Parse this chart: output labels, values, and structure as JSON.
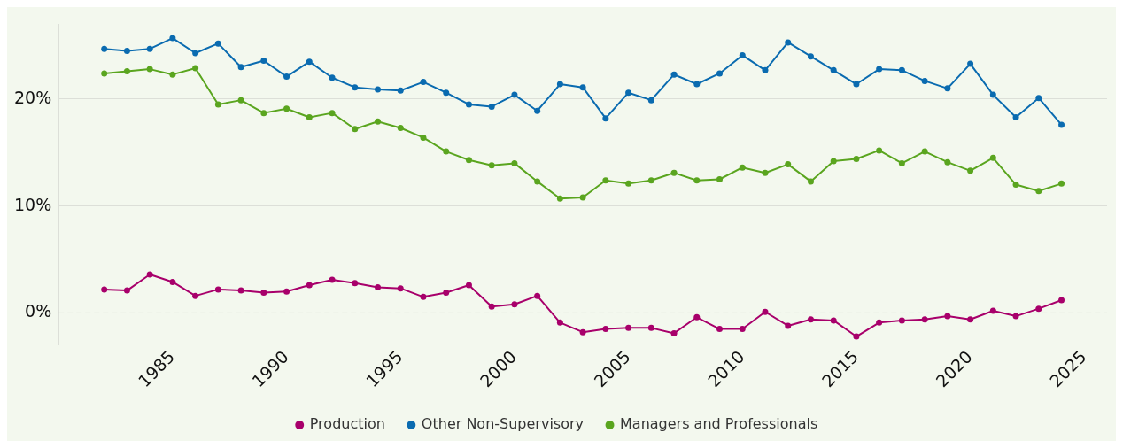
{
  "chart_data": {
    "type": "line",
    "xlim": [
      1980,
      2026
    ],
    "xticks": [
      1985,
      1990,
      1995,
      2000,
      2005,
      2010,
      2015,
      2020,
      2025
    ],
    "ylim": [
      -3,
      27
    ],
    "yticks": [
      {
        "value": 0,
        "label": "0%"
      },
      {
        "value": 10,
        "label": "10%"
      },
      {
        "value": 20,
        "label": "20%"
      }
    ],
    "grid": "y",
    "legend": "bottom",
    "marker": "circle",
    "line_style": "solid",
    "x": [
      1982,
      1983,
      1984,
      1985,
      1986,
      1987,
      1988,
      1989,
      1990,
      1991,
      1992,
      1993,
      1994,
      1995,
      1996,
      1997,
      1998,
      1999,
      2000,
      2001,
      2002,
      2003,
      2004,
      2005,
      2006,
      2007,
      2008,
      2009,
      2010,
      2011,
      2012,
      2013,
      2014,
      2015,
      2016,
      2017,
      2018,
      2019,
      2020,
      2021,
      2022,
      2023,
      2024
    ],
    "ref_lines": [
      {
        "axis": "y",
        "value": 0,
        "color": "#999999",
        "line_style": "dashed"
      }
    ],
    "series": [
      {
        "name": "Production",
        "color": "#a8006b",
        "values": [
          2.2,
          2.1,
          3.6,
          2.9,
          1.6,
          2.2,
          2.1,
          1.9,
          2.0,
          2.6,
          3.1,
          2.8,
          2.4,
          2.3,
          1.5,
          1.9,
          2.6,
          0.6,
          0.8,
          1.6,
          -0.9,
          -1.8,
          -1.5,
          -1.4,
          -1.4,
          -1.9,
          -0.4,
          -1.5,
          -1.5,
          0.1,
          -1.2,
          -0.6,
          -0.7,
          -2.2,
          -0.9,
          -0.7,
          -0.6,
          -0.3,
          -0.6,
          0.2,
          -0.3,
          0.4,
          1.2
        ]
      },
      {
        "name": "Other Non-Supervisory",
        "color": "#0a6bb0",
        "values": [
          24.7,
          24.5,
          24.7,
          25.7,
          24.3,
          25.2,
          23.0,
          23.6,
          22.1,
          23.5,
          22.0,
          21.1,
          20.9,
          20.8,
          21.6,
          20.6,
          19.5,
          19.3,
          20.4,
          18.9,
          21.4,
          21.1,
          18.2,
          20.6,
          19.9,
          22.3,
          21.4,
          22.4,
          24.1,
          22.7,
          25.3,
          24.0,
          22.7,
          21.4,
          22.8,
          22.7,
          21.7,
          21.0,
          23.3,
          20.4,
          18.3,
          20.1,
          17.6
        ]
      },
      {
        "name": "Managers and Professionals",
        "color": "#5aa51f",
        "values": [
          22.4,
          22.6,
          22.8,
          22.3,
          22.9,
          19.5,
          19.9,
          18.7,
          19.1,
          18.3,
          18.7,
          17.2,
          17.9,
          17.3,
          16.4,
          15.1,
          14.3,
          13.8,
          14.0,
          12.3,
          10.7,
          10.8,
          12.4,
          12.1,
          12.4,
          13.1,
          12.4,
          12.5,
          13.6,
          13.1,
          13.9,
          12.3,
          14.2,
          14.4,
          15.2,
          14.0,
          15.1,
          14.1,
          13.3,
          14.5,
          12.0,
          11.4,
          12.1
        ]
      }
    ]
  }
}
